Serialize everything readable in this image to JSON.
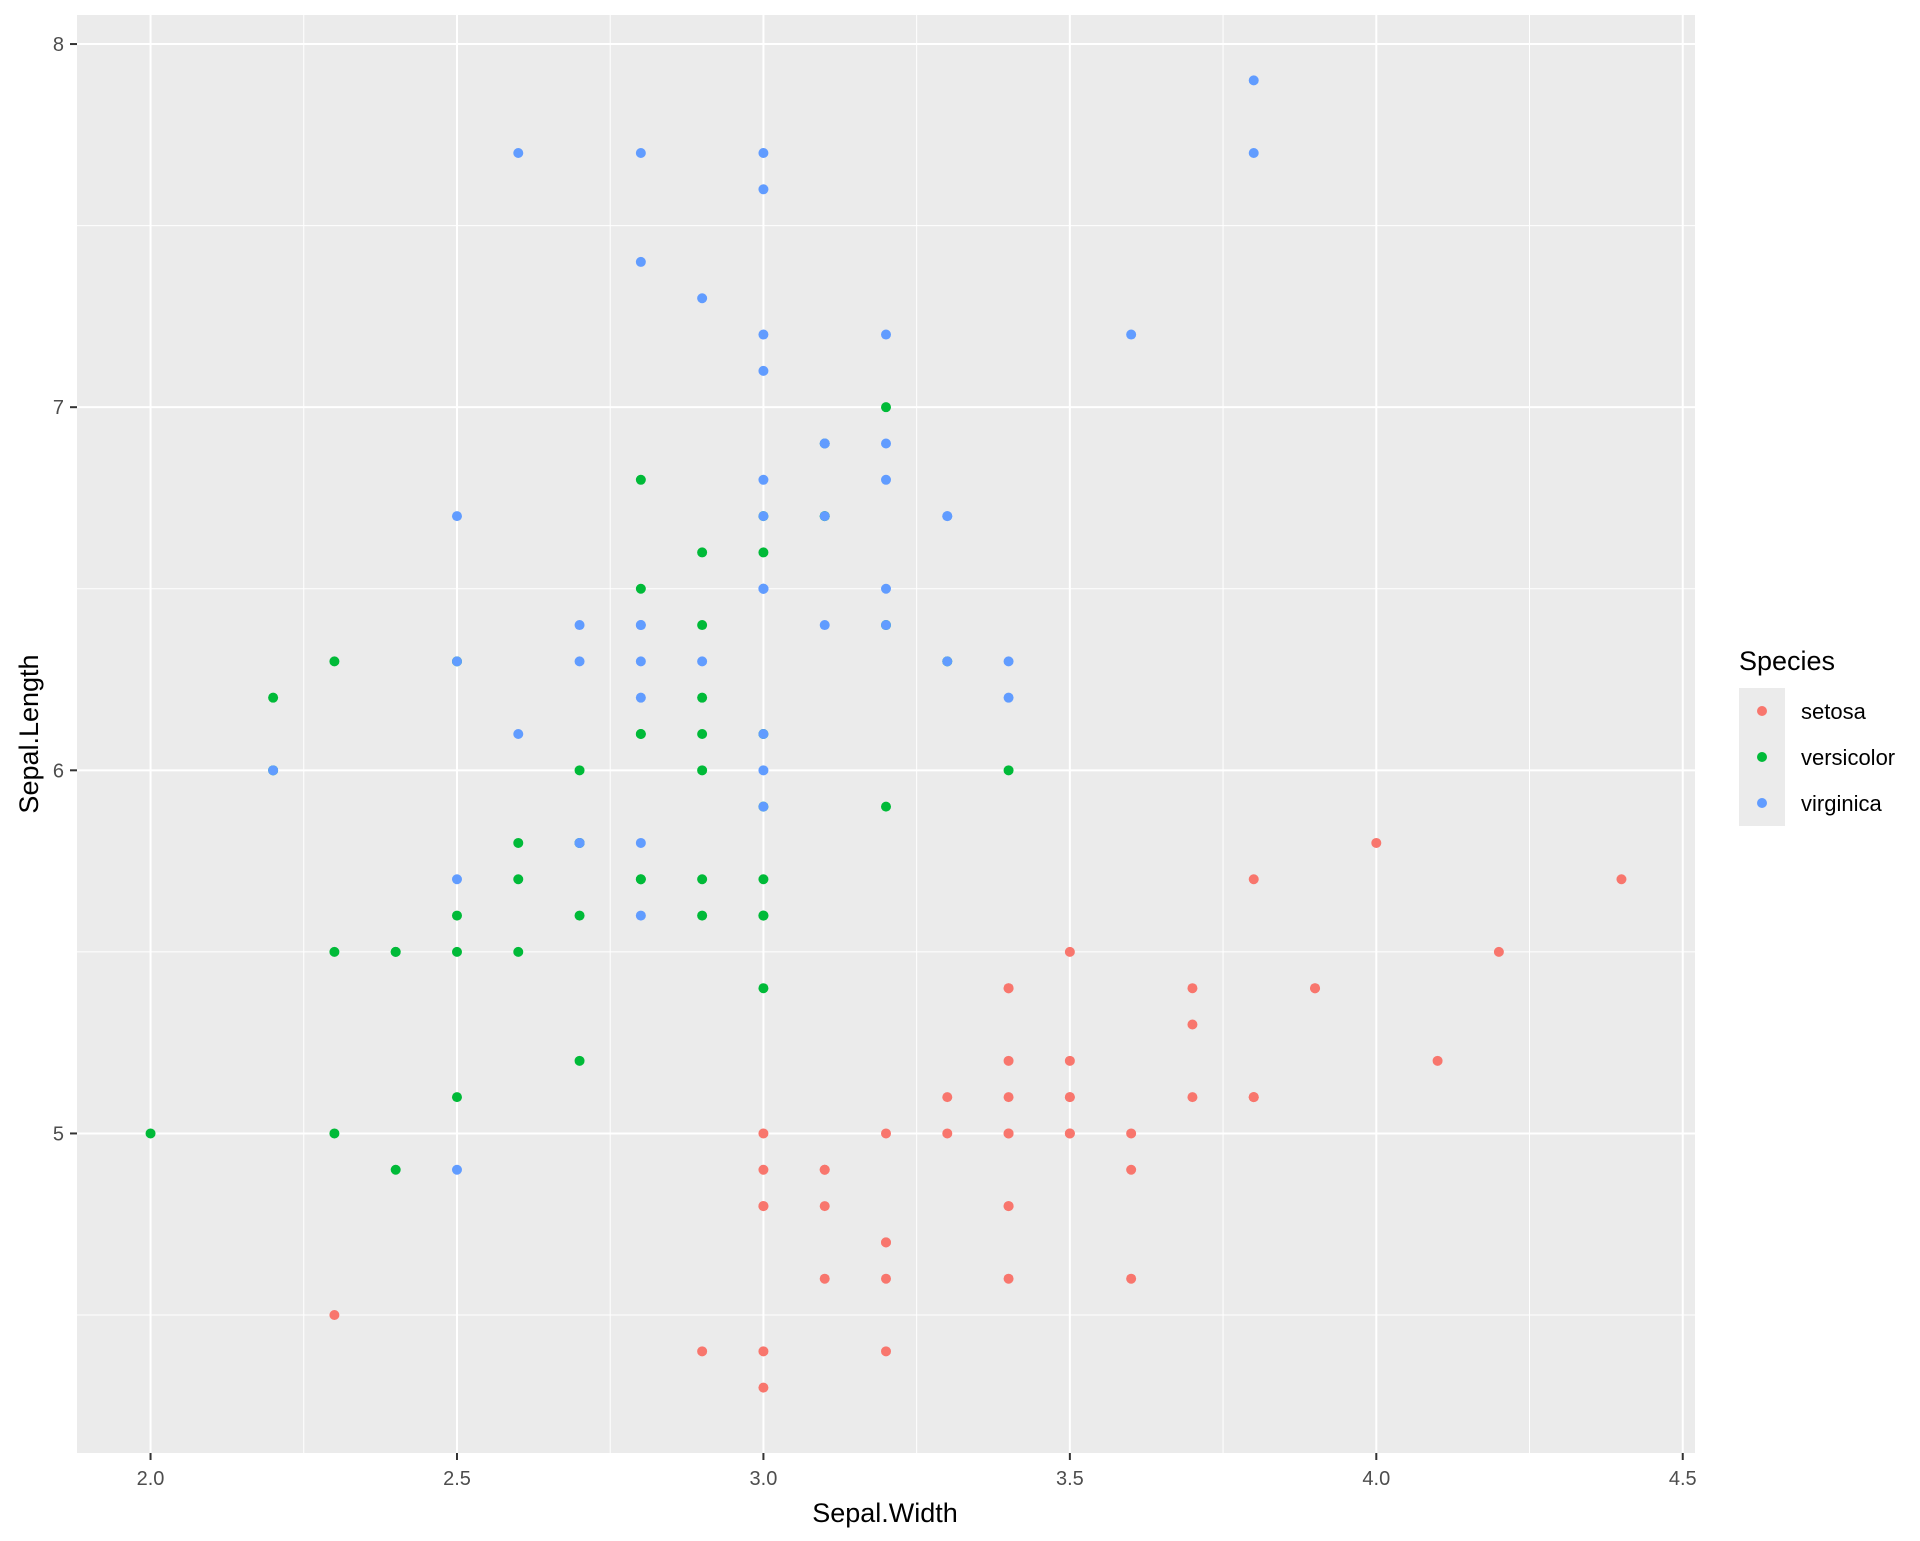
{
  "chart_data": {
    "type": "scatter",
    "title": "",
    "xlabel": "Sepal.Width",
    "ylabel": "Sepal.Length",
    "xlim": [
      1.88,
      4.52
    ],
    "ylim": [
      4.12,
      8.08
    ],
    "x_ticks": [
      2.0,
      2.5,
      3.0,
      3.5,
      4.0,
      4.5
    ],
    "x_tick_labels": [
      "2.0",
      "2.5",
      "3.0",
      "3.5",
      "4.0",
      "4.5"
    ],
    "y_ticks": [
      5,
      6,
      7,
      8
    ],
    "y_tick_labels": [
      "5",
      "6",
      "7",
      "8"
    ],
    "grid": true,
    "panel_background": "#ebebeb",
    "legend": {
      "title": "Species",
      "position": "right"
    },
    "series": [
      {
        "name": "setosa",
        "color": "#f8766d",
        "points": [
          [
            3.5,
            5.1
          ],
          [
            3.0,
            4.9
          ],
          [
            3.2,
            4.7
          ],
          [
            3.1,
            4.6
          ],
          [
            3.6,
            5.0
          ],
          [
            3.9,
            5.4
          ],
          [
            3.4,
            4.6
          ],
          [
            3.4,
            5.0
          ],
          [
            2.9,
            4.4
          ],
          [
            3.1,
            4.9
          ],
          [
            3.7,
            5.4
          ],
          [
            3.4,
            4.8
          ],
          [
            3.0,
            4.8
          ],
          [
            3.0,
            4.3
          ],
          [
            4.0,
            5.8
          ],
          [
            4.4,
            5.7
          ],
          [
            3.9,
            5.4
          ],
          [
            3.5,
            5.1
          ],
          [
            3.8,
            5.7
          ],
          [
            3.8,
            5.1
          ],
          [
            3.4,
            5.4
          ],
          [
            3.7,
            5.1
          ],
          [
            3.6,
            4.6
          ],
          [
            3.3,
            5.1
          ],
          [
            3.4,
            4.8
          ],
          [
            3.0,
            5.0
          ],
          [
            3.4,
            5.0
          ],
          [
            3.5,
            5.2
          ],
          [
            3.4,
            5.2
          ],
          [
            3.2,
            4.7
          ],
          [
            3.1,
            4.8
          ],
          [
            3.4,
            5.4
          ],
          [
            4.1,
            5.2
          ],
          [
            4.2,
            5.5
          ],
          [
            3.1,
            4.9
          ],
          [
            3.2,
            5.0
          ],
          [
            3.5,
            5.5
          ],
          [
            3.6,
            4.9
          ],
          [
            3.0,
            4.4
          ],
          [
            3.4,
            5.1
          ],
          [
            3.5,
            5.0
          ],
          [
            2.3,
            4.5
          ],
          [
            3.2,
            4.4
          ],
          [
            3.5,
            5.0
          ],
          [
            3.8,
            5.1
          ],
          [
            3.0,
            4.8
          ],
          [
            3.8,
            5.1
          ],
          [
            3.2,
            4.6
          ],
          [
            3.7,
            5.3
          ],
          [
            3.3,
            5.0
          ]
        ]
      },
      {
        "name": "versicolor",
        "color": "#00ba38",
        "points": [
          [
            3.2,
            7.0
          ],
          [
            3.2,
            6.4
          ],
          [
            3.1,
            6.9
          ],
          [
            2.3,
            5.5
          ],
          [
            2.8,
            6.5
          ],
          [
            2.8,
            5.7
          ],
          [
            3.3,
            6.3
          ],
          [
            2.4,
            4.9
          ],
          [
            2.9,
            6.6
          ],
          [
            2.7,
            5.2
          ],
          [
            2.0,
            5.0
          ],
          [
            3.0,
            5.9
          ],
          [
            2.2,
            6.0
          ],
          [
            2.9,
            6.1
          ],
          [
            2.9,
            5.6
          ],
          [
            3.1,
            6.7
          ],
          [
            3.0,
            5.6
          ],
          [
            2.7,
            5.8
          ],
          [
            2.2,
            6.2
          ],
          [
            2.5,
            5.6
          ],
          [
            3.2,
            5.9
          ],
          [
            2.8,
            6.1
          ],
          [
            2.5,
            6.3
          ],
          [
            2.8,
            6.1
          ],
          [
            2.9,
            6.4
          ],
          [
            3.0,
            6.6
          ],
          [
            2.8,
            6.8
          ],
          [
            3.0,
            6.7
          ],
          [
            2.9,
            6.0
          ],
          [
            2.6,
            5.7
          ],
          [
            2.4,
            5.5
          ],
          [
            2.4,
            5.5
          ],
          [
            2.7,
            5.8
          ],
          [
            2.7,
            6.0
          ],
          [
            3.0,
            5.4
          ],
          [
            3.4,
            6.0
          ],
          [
            3.1,
            6.7
          ],
          [
            2.3,
            6.3
          ],
          [
            3.0,
            5.6
          ],
          [
            2.5,
            5.5
          ],
          [
            2.6,
            5.5
          ],
          [
            3.0,
            6.1
          ],
          [
            2.6,
            5.8
          ],
          [
            2.3,
            5.0
          ],
          [
            2.7,
            5.6
          ],
          [
            3.0,
            5.7
          ],
          [
            2.9,
            5.7
          ],
          [
            2.9,
            6.2
          ],
          [
            2.5,
            5.1
          ],
          [
            2.8,
            5.7
          ]
        ]
      },
      {
        "name": "virginica",
        "color": "#619cff",
        "points": [
          [
            3.3,
            6.3
          ],
          [
            2.7,
            5.8
          ],
          [
            3.0,
            7.1
          ],
          [
            2.9,
            6.3
          ],
          [
            3.0,
            6.5
          ],
          [
            3.0,
            7.6
          ],
          [
            2.5,
            4.9
          ],
          [
            2.9,
            7.3
          ],
          [
            2.5,
            6.7
          ],
          [
            3.6,
            7.2
          ],
          [
            3.2,
            6.5
          ],
          [
            2.7,
            6.4
          ],
          [
            3.0,
            6.8
          ],
          [
            2.5,
            5.7
          ],
          [
            2.8,
            5.8
          ],
          [
            3.2,
            6.4
          ],
          [
            3.0,
            6.5
          ],
          [
            3.8,
            7.7
          ],
          [
            2.6,
            7.7
          ],
          [
            2.2,
            6.0
          ],
          [
            3.2,
            6.9
          ],
          [
            2.8,
            5.6
          ],
          [
            2.8,
            7.7
          ],
          [
            2.7,
            6.3
          ],
          [
            3.3,
            6.7
          ],
          [
            3.2,
            7.2
          ],
          [
            2.8,
            6.2
          ],
          [
            3.0,
            6.1
          ],
          [
            2.8,
            6.4
          ],
          [
            3.0,
            7.2
          ],
          [
            2.8,
            7.4
          ],
          [
            3.8,
            7.9
          ],
          [
            2.8,
            6.4
          ],
          [
            2.8,
            6.3
          ],
          [
            2.6,
            6.1
          ],
          [
            3.0,
            7.7
          ],
          [
            3.4,
            6.3
          ],
          [
            3.1,
            6.4
          ],
          [
            3.0,
            6.0
          ],
          [
            3.1,
            6.9
          ],
          [
            3.1,
            6.7
          ],
          [
            3.1,
            6.9
          ],
          [
            2.7,
            5.8
          ],
          [
            3.2,
            6.8
          ],
          [
            3.3,
            6.7
          ],
          [
            3.0,
            6.7
          ],
          [
            2.5,
            6.3
          ],
          [
            3.0,
            6.5
          ],
          [
            3.4,
            6.2
          ],
          [
            3.0,
            5.9
          ]
        ]
      }
    ]
  }
}
